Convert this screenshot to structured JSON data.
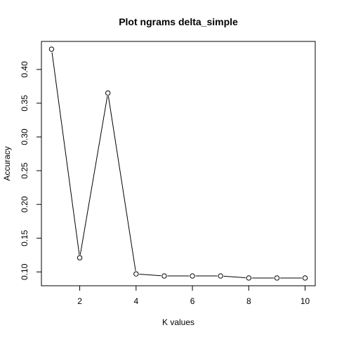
{
  "chart_data": {
    "type": "line",
    "title": "Plot ngrams delta_simple",
    "xlabel": "K values",
    "ylabel": "Accuracy",
    "xlim": [
      0.64,
      10.36
    ],
    "ylim": [
      0.0795,
      0.4415
    ],
    "x_ticks": [
      2,
      4,
      6,
      8,
      10
    ],
    "x_tick_labels": [
      "2",
      "4",
      "6",
      "8",
      "10"
    ],
    "y_ticks": [
      0.1,
      0.15,
      0.2,
      0.25,
      0.3,
      0.35,
      0.4
    ],
    "y_tick_labels": [
      "0.10",
      "0.15",
      "0.20",
      "0.25",
      "0.30",
      "0.35",
      "0.40"
    ],
    "grid": false,
    "marker": "open-circle",
    "line_color": "#000000",
    "x": [
      1,
      2,
      3,
      4,
      5,
      6,
      7,
      8,
      9,
      10
    ],
    "values": [
      0.43,
      0.121,
      0.365,
      0.097,
      0.094,
      0.094,
      0.094,
      0.091,
      0.091,
      0.091
    ]
  }
}
